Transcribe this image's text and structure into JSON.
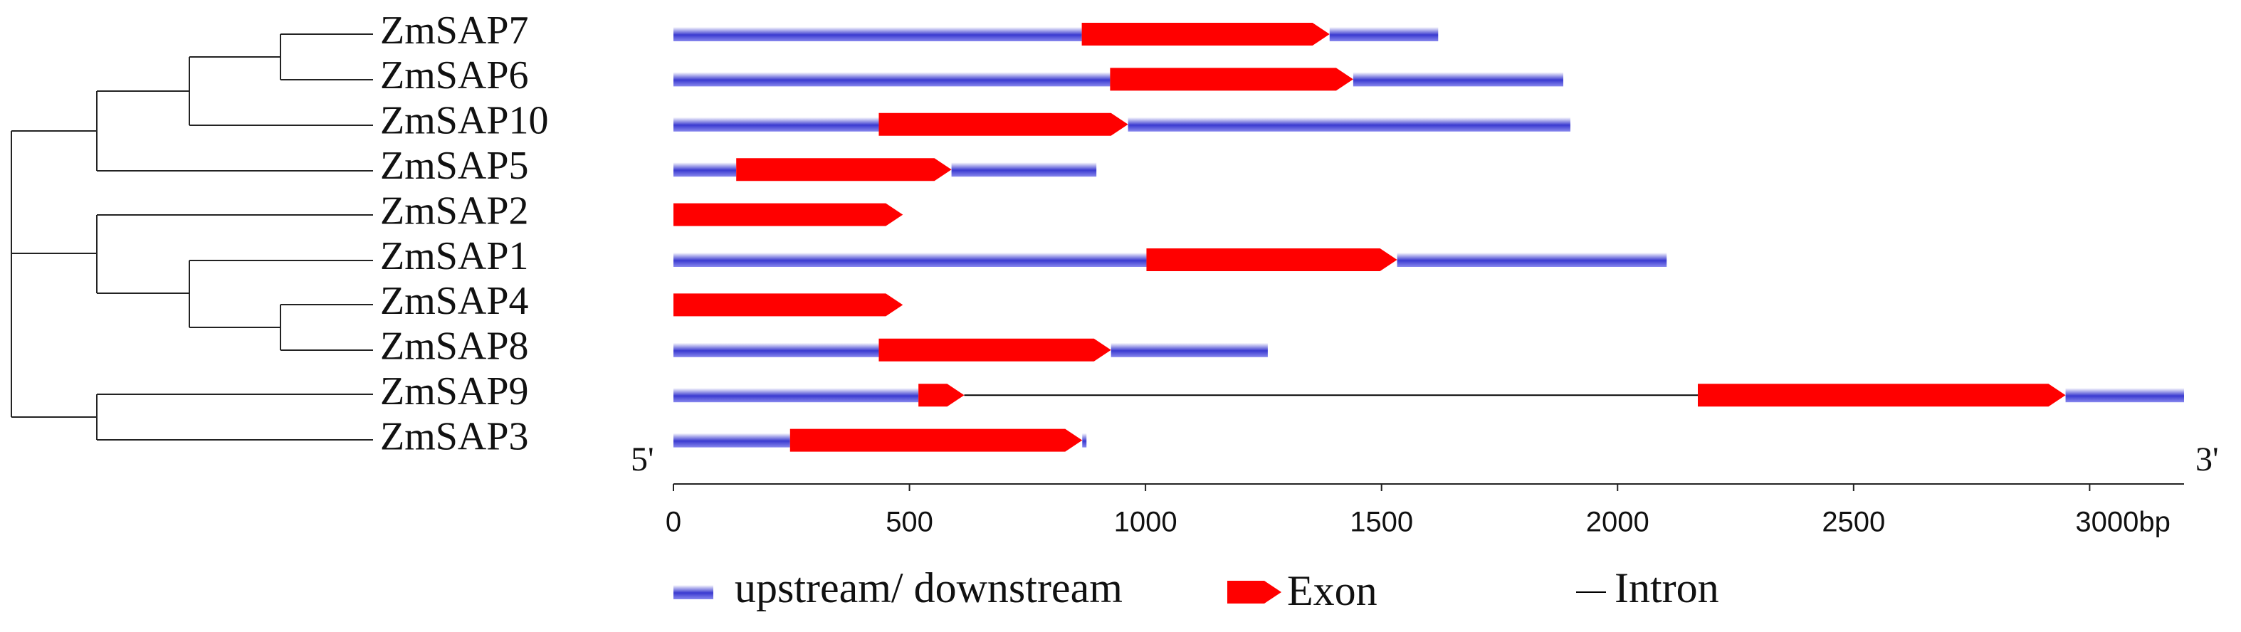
{
  "genes": [
    {
      "name": "ZmSAP7",
      "segments": [
        {
          "type": "utr",
          "start": 0,
          "end": 865
        },
        {
          "type": "exon",
          "start": 865,
          "end": 1390
        },
        {
          "type": "utr",
          "start": 1390,
          "end": 1620
        }
      ]
    },
    {
      "name": "ZmSAP6",
      "segments": [
        {
          "type": "utr",
          "start": 0,
          "end": 925
        },
        {
          "type": "exon",
          "start": 925,
          "end": 1440
        },
        {
          "type": "utr",
          "start": 1440,
          "end": 1885
        }
      ]
    },
    {
      "name": "ZmSAP10",
      "segments": [
        {
          "type": "utr",
          "start": 0,
          "end": 435
        },
        {
          "type": "exon",
          "start": 435,
          "end": 963
        },
        {
          "type": "utr",
          "start": 963,
          "end": 1900
        }
      ]
    },
    {
      "name": "ZmSAP5",
      "segments": [
        {
          "type": "utr",
          "start": 0,
          "end": 133
        },
        {
          "type": "exon",
          "start": 133,
          "end": 589
        },
        {
          "type": "utr",
          "start": 589,
          "end": 896
        }
      ]
    },
    {
      "name": "ZmSAP2",
      "segments": [
        {
          "type": "exon",
          "start": 0,
          "end": 486
        }
      ]
    },
    {
      "name": "ZmSAP1",
      "segments": [
        {
          "type": "utr",
          "start": 0,
          "end": 1002
        },
        {
          "type": "exon",
          "start": 1002,
          "end": 1533
        },
        {
          "type": "utr",
          "start": 1533,
          "end": 2104
        }
      ]
    },
    {
      "name": "ZmSAP4",
      "segments": [
        {
          "type": "exon",
          "start": 0,
          "end": 486
        }
      ]
    },
    {
      "name": "ZmSAP8",
      "segments": [
        {
          "type": "utr",
          "start": 0,
          "end": 435
        },
        {
          "type": "exon",
          "start": 435,
          "end": 927
        },
        {
          "type": "utr",
          "start": 927,
          "end": 1259
        }
      ]
    },
    {
      "name": "ZmSAP9",
      "segments": [
        {
          "type": "utr",
          "start": 0,
          "end": 519
        },
        {
          "type": "exon",
          "start": 519,
          "end": 616
        },
        {
          "type": "intron",
          "start": 616,
          "end": 2170
        },
        {
          "type": "exon",
          "start": 2170,
          "end": 2949
        },
        {
          "type": "utr",
          "start": 2949,
          "end": 3200
        }
      ]
    },
    {
      "name": "ZmSAP3",
      "segments": [
        {
          "type": "utr",
          "start": 0,
          "end": 247
        },
        {
          "type": "exon",
          "start": 247,
          "end": 866
        },
        {
          "type": "utr",
          "start": 866,
          "end": 875
        }
      ]
    }
  ],
  "end_labels": [
    "5'",
    "3'"
  ],
  "xlim": [
    0,
    3200
  ],
  "xticks": [
    0,
    500,
    1000,
    1500,
    2000,
    2500,
    {
      "value": 3000,
      "label": "3000bp"
    }
  ],
  "legend": {
    "utr": "upstream/ downstream",
    "exon": "Exon",
    "intron": "Intron"
  },
  "colors": {
    "utr": "#3a3ad0",
    "exon": "#ff0000",
    "intron": "#000000"
  }
}
